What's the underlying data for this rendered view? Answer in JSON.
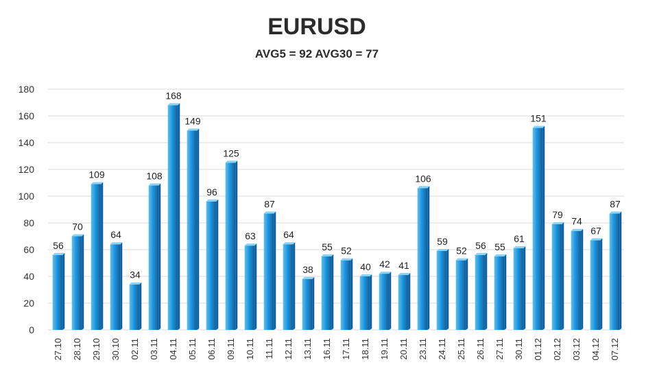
{
  "chart_data": {
    "type": "bar",
    "title": "EURUSD",
    "subtitle": "AVG5 = 92 AVG30 = 77",
    "categories": [
      "27.10",
      "28.10",
      "29.10",
      "30.10",
      "02.11",
      "03.11",
      "04.11",
      "05.11",
      "06.11",
      "09.11",
      "10.11",
      "11.11",
      "12.11",
      "13.11",
      "16.11",
      "17.11",
      "18.11",
      "19.11",
      "20.11",
      "23.11",
      "24.11",
      "25.11",
      "26.11",
      "27.11",
      "30.11",
      "01.12",
      "02.12",
      "03.12",
      "04.12",
      "07.12"
    ],
    "values": [
      56,
      70,
      109,
      64,
      34,
      108,
      168,
      149,
      96,
      125,
      63,
      87,
      64,
      38,
      55,
      52,
      40,
      42,
      41,
      106,
      59,
      52,
      56,
      55,
      61,
      151,
      79,
      74,
      67,
      87
    ],
    "ylim": [
      0,
      180
    ],
    "yticks": [
      0,
      20,
      40,
      60,
      80,
      100,
      120,
      140,
      160,
      180
    ],
    "grid": true,
    "legend": "none",
    "colors": {
      "bar_light": "#5cc0f2",
      "bar_main": "#1f93dc",
      "bar_dark": "#0d5f9c",
      "bar_top": "#8ad3f7"
    }
  }
}
